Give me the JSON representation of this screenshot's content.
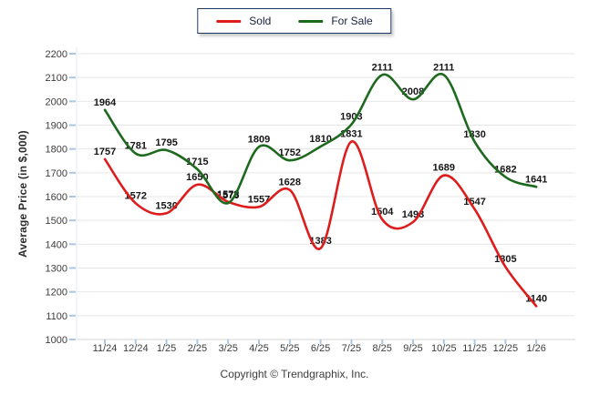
{
  "y_axis_title": "Average Price (in $,000)",
  "footer": "Copyright © Trendgraphix, Inc.",
  "colors": {
    "sold": "#dd1c1c",
    "for_sale": "#1d691d",
    "gridline": "#e7e7e7",
    "axis_line": "#d6d6d6",
    "tick_mark": "#a9c7e4",
    "tick_text": "#3c3c3c",
    "point_label_text": "#161616",
    "legend_border": "#1f3864"
  },
  "chart_data": {
    "type": "line",
    "categories": [
      "11/24",
      "12/24",
      "1/25",
      "2/25",
      "3/25",
      "4/25",
      "5/25",
      "6/25",
      "7/25",
      "8/25",
      "9/25",
      "10/25",
      "11/25",
      "12/25",
      "1/26"
    ],
    "series": [
      {
        "name": "Sold",
        "color": "#dd1c1c",
        "values": [
          1757,
          1572,
          1530,
          1650,
          1578,
          1557,
          1628,
          1383,
          1831,
          1504,
          1493,
          1689,
          1547,
          1305,
          1140
        ]
      },
      {
        "name": "For Sale",
        "color": "#1d691d",
        "values": [
          1964,
          1781,
          1795,
          1715,
          1573,
          1809,
          1752,
          1810,
          1903,
          2111,
          2008,
          2111,
          1830,
          1682,
          1641
        ]
      }
    ],
    "title": "",
    "xlabel": "",
    "ylabel": "Average Price (in $,000)",
    "ylim": [
      1000,
      2200
    ],
    "ytick_step": 100,
    "grid": true,
    "smooth": true,
    "point_labels": true,
    "legend_position": "top-center"
  }
}
